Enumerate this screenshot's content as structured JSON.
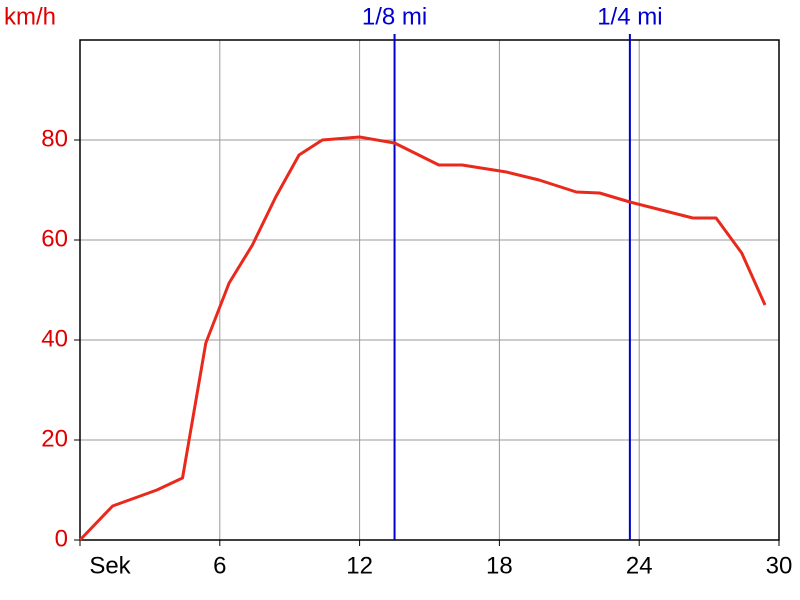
{
  "chart_data": {
    "type": "line",
    "y_label": "km/h",
    "x": [
      0,
      1.4,
      3.3,
      4.4,
      5.4,
      6.4,
      7.4,
      8.4,
      9.4,
      10.4,
      12,
      13.5,
      15.4,
      16.4,
      18.3,
      19.7,
      21.3,
      22.3,
      23.6,
      26.3,
      27.3,
      28.4,
      29.4
    ],
    "values": [
      0,
      6.8,
      10,
      12.4,
      39.4,
      51.4,
      59,
      68.6,
      77,
      80,
      80.6,
      79.4,
      75,
      75,
      73.6,
      72,
      69.6,
      69.4,
      67.6,
      64.4,
      64.4,
      57.4,
      47
    ],
    "color": "#e8291c",
    "xlim": [
      0,
      30
    ],
    "xticks": [
      {
        "value": 0,
        "label": "Sek"
      },
      6,
      12,
      18,
      24,
      30
    ],
    "ylim": [
      0,
      100
    ],
    "yticks": [
      0,
      20,
      40,
      60,
      80
    ],
    "grid": true,
    "markers": [
      {
        "x": 13.5,
        "label": "1/8 mi"
      },
      {
        "x": 23.6,
        "label": "1/4 mi"
      }
    ],
    "marker_color": "#0000cc"
  }
}
